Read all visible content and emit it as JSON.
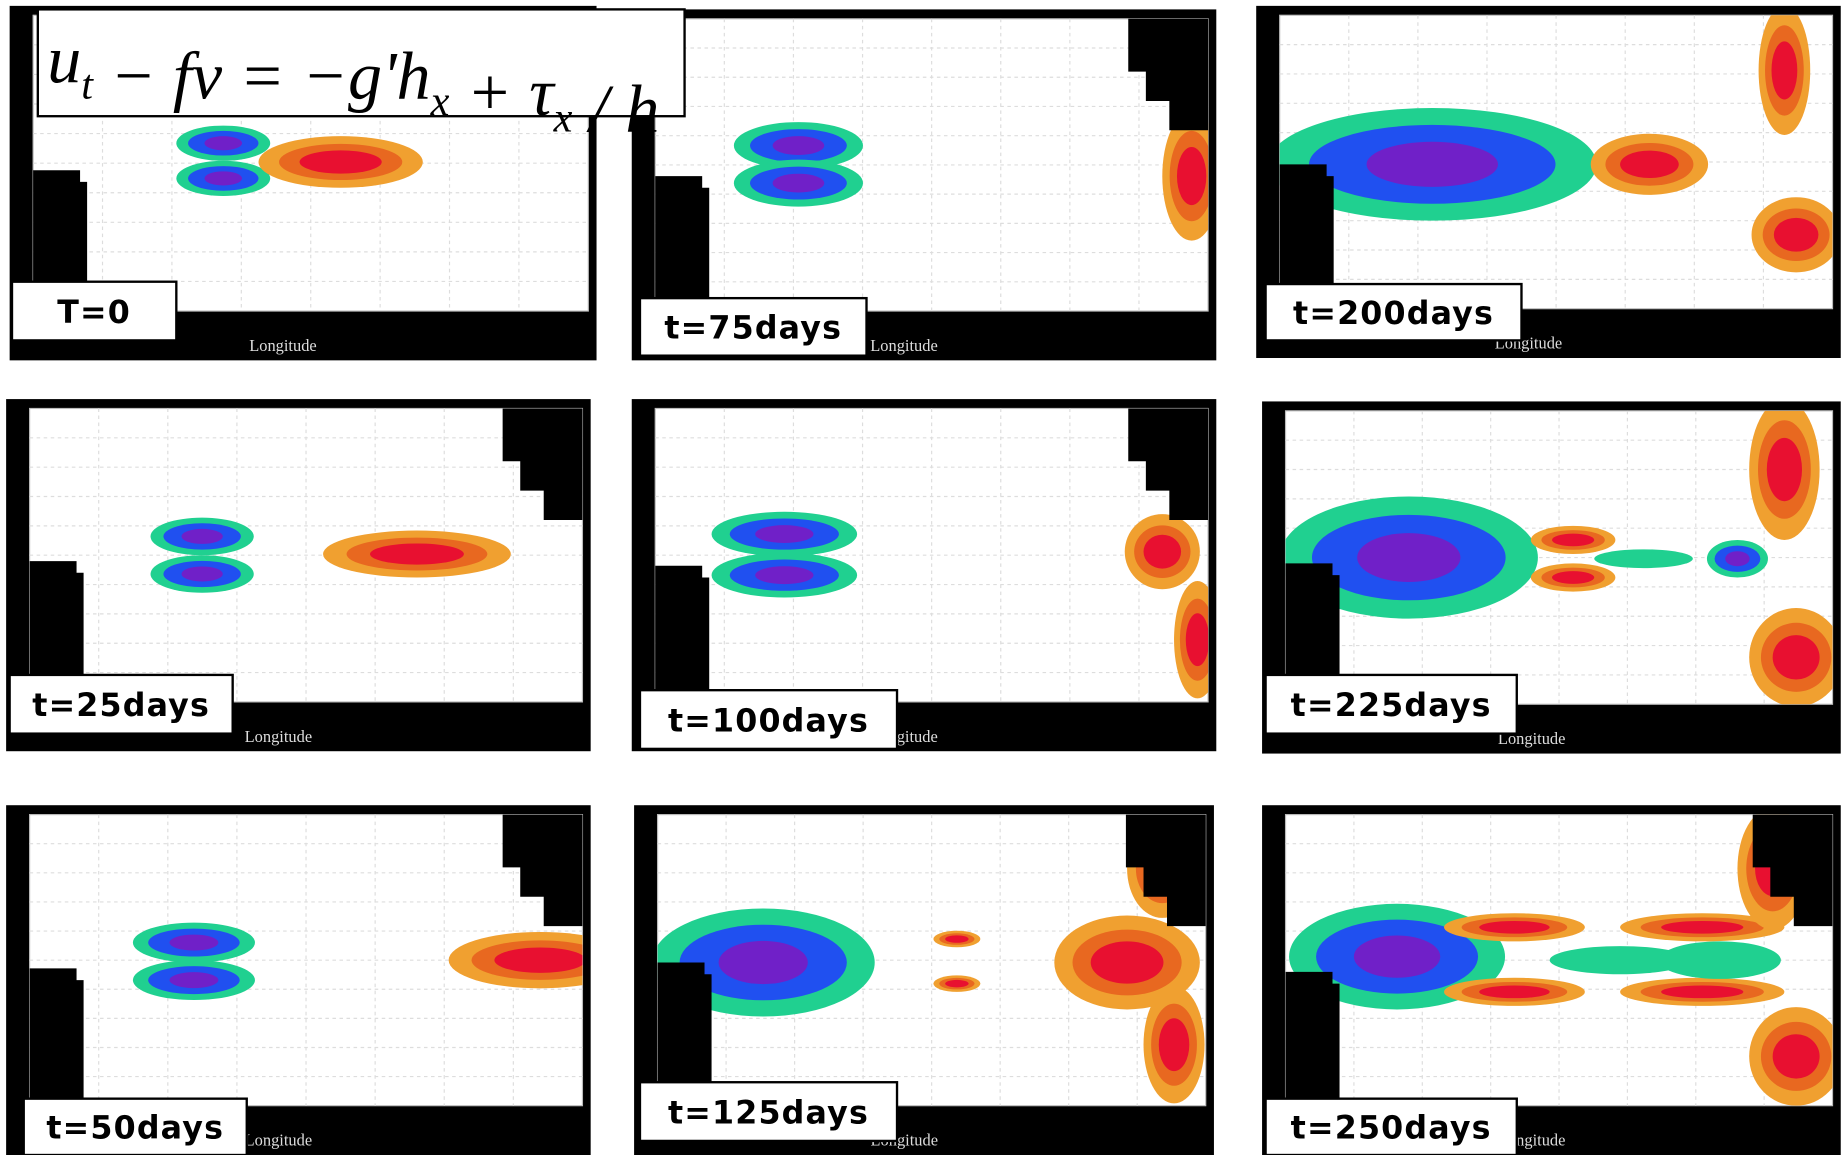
{
  "equation": [
    {
      "base": "u",
      "sub": "t"
    },
    {
      "base": " − fv = −g'h",
      "sub": "x"
    },
    {
      "base": " + τ",
      "sub": "x"
    },
    {
      "base": " / h"
    }
  ],
  "x_label": "Longitude",
  "panels": [
    {
      "label": "T=0"
    },
    {
      "label": "t=75days"
    },
    {
      "label": "t=200days"
    },
    {
      "label": "t=25days"
    },
    {
      "label": "t=100days"
    },
    {
      "label": "t=225days"
    },
    {
      "label": "t=50days"
    },
    {
      "label": "t=125days"
    },
    {
      "label": "t=250days"
    }
  ]
}
